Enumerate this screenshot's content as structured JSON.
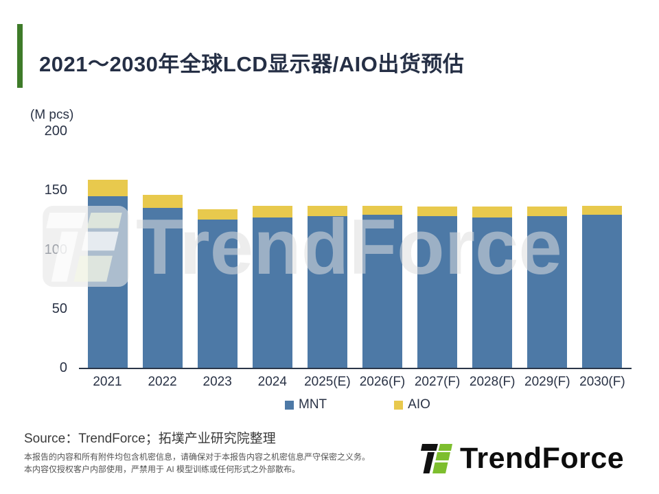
{
  "slide": {
    "title": "2021～2030年全球LCD显示器/AIO出货预估",
    "accent_color": "#3E7B29"
  },
  "chart_data": {
    "type": "bar",
    "stacked": true,
    "title": "2021～2030年全球LCD显示器/AIO出货预估",
    "unit_label": "(M pcs)",
    "categories": [
      "2021",
      "2022",
      "2023",
      "2024",
      "2025(E)",
      "2026(F)",
      "2027(F)",
      "2028(F)",
      "2029(F)",
      "2030(F)"
    ],
    "series": [
      {
        "name": "MNT",
        "color": "#4D79A6",
        "values": [
          145,
          135,
          125,
          127,
          128,
          129,
          128,
          127,
          128,
          129
        ]
      },
      {
        "name": "AIO",
        "color": "#E8C94D",
        "values": [
          14,
          11,
          9,
          10,
          9,
          8,
          8,
          9,
          8,
          8
        ]
      }
    ],
    "y_ticks": [
      0,
      50,
      100,
      150,
      200
    ],
    "ylim": [
      0,
      200
    ],
    "grid": false,
    "legend_position": "bottom"
  },
  "watermark": {
    "text": "TrendForce"
  },
  "footer": {
    "source": "Source：TrendForce；拓墣产业研究院整理",
    "disclaimer_line1": "本报告的内容和所有附件均包含机密信息，请确保对于本报告内容之机密信息严守保密之义务。",
    "disclaimer_line2": "本内容仅授权客户内部使用，严禁用于 AI 模型训练或任何形式之外部散布。",
    "logo_text": "TrendForce"
  }
}
